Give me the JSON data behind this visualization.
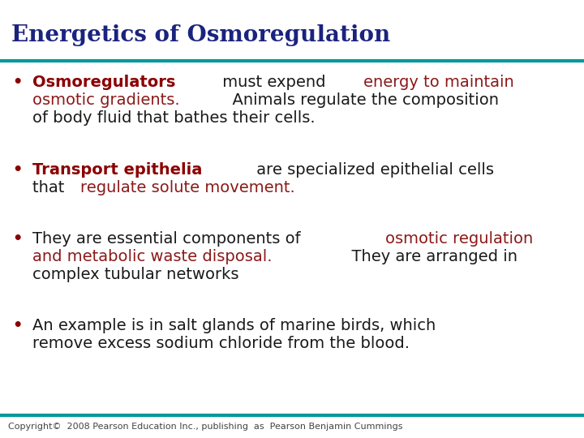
{
  "title": "Energetics of Osmoregulation",
  "title_color": "#1a237e",
  "title_fontsize": 20,
  "teal_line_color": "#009999",
  "background_color": "#ffffff",
  "bullet_color": "#8B0000",
  "copyright": "Copyright©  2008 Pearson Education Inc., publishing  as  Pearson Benjamin Cummings",
  "copyright_fontsize": 8,
  "dark_red": "#8B1A1A",
  "dark_color": "#1a1a1a",
  "body_fontsize": 14,
  "font_family": "DejaVu Sans",
  "bullets": [
    [
      {
        "text": "Osmoregulators",
        "bold": true,
        "color": "#8B0000"
      },
      {
        "text": " must expend ",
        "bold": false,
        "color": "#1a1a1a"
      },
      {
        "text": "energy to maintain\nosmotic gradients.",
        "bold": false,
        "color": "#8B1A1A"
      },
      {
        "text": "  Animals regulate the composition\nof body fluid that bathes their cells.",
        "bold": false,
        "color": "#1a1a1a"
      }
    ],
    [
      {
        "text": "Transport epithelia",
        "bold": true,
        "color": "#8B0000"
      },
      {
        "text": " are specialized epithelial cells\nthat ",
        "bold": false,
        "color": "#1a1a1a"
      },
      {
        "text": "regulate solute movement.",
        "bold": false,
        "color": "#8B1A1A"
      }
    ],
    [
      {
        "text": "They are essential components of ",
        "bold": false,
        "color": "#1a1a1a"
      },
      {
        "text": "osmotic regulation\nand metabolic waste disposal.",
        "bold": false,
        "color": "#8B1A1A"
      },
      {
        "text": "  They are arranged in\ncomplex tubular networks",
        "bold": false,
        "color": "#1a1a1a"
      }
    ],
    [
      {
        "text": "An example is in salt glands of marine birds, which\nremove excess sodium chloride from the blood.",
        "bold": false,
        "color": "#1a1a1a"
      }
    ]
  ]
}
